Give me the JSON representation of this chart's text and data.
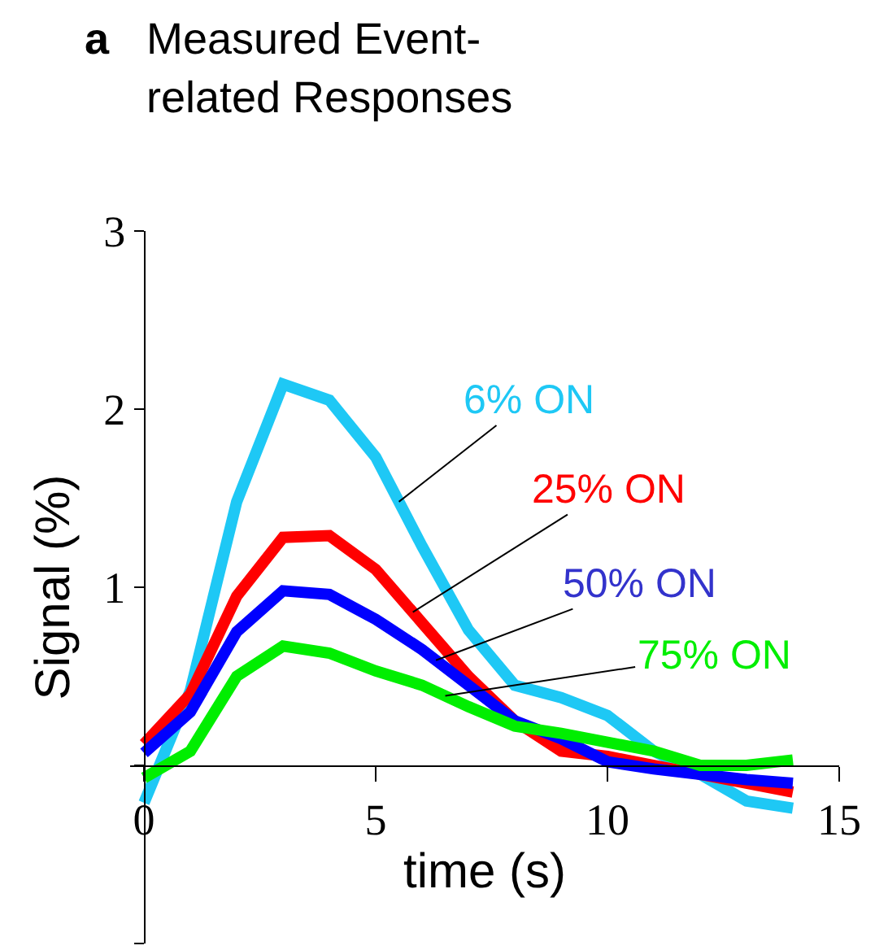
{
  "chart_data": {
    "type": "line",
    "title": "Measured Event-related Responses",
    "annotations": [
      "a"
    ],
    "xlabel": "time (s)",
    "ylabel": "Signal (%)",
    "x": [
      0,
      1,
      2,
      3,
      4,
      5,
      6,
      7,
      8,
      9,
      10,
      11,
      12,
      13,
      14
    ],
    "series": [
      {
        "name": "6% ON",
        "color": "#1ec8f5",
        "values": [
          -0.21,
          0.42,
          1.48,
          2.14,
          2.05,
          1.73,
          1.23,
          0.76,
          0.45,
          0.38,
          0.28,
          0.08,
          -0.05,
          -0.2,
          -0.24
        ]
      },
      {
        "name": "25% ON",
        "color": "#ff0000",
        "values": [
          0.12,
          0.4,
          0.95,
          1.28,
          1.29,
          1.1,
          0.8,
          0.5,
          0.25,
          0.08,
          0.05,
          0.0,
          -0.05,
          -0.1,
          -0.15
        ]
      },
      {
        "name": "50% ON",
        "color": "#0000ff",
        "values": [
          0.07,
          0.3,
          0.75,
          0.98,
          0.96,
          0.82,
          0.65,
          0.45,
          0.25,
          0.15,
          0.02,
          -0.02,
          -0.05,
          -0.08,
          -0.1
        ]
      },
      {
        "name": "75% ON",
        "color": "#00ee00",
        "values": [
          -0.07,
          0.08,
          0.5,
          0.67,
          0.63,
          0.53,
          0.45,
          0.33,
          0.22,
          0.18,
          0.13,
          0.08,
          0.0,
          0.0,
          0.03
        ]
      }
    ],
    "xlim": [
      -0.3,
      15
    ],
    "xticks": [
      0,
      5,
      10,
      15
    ],
    "ylim": [
      -1,
      3
    ],
    "yticks": [
      {
        "value": -1,
        "label": null
      },
      {
        "value": 0,
        "label": null
      },
      1,
      2,
      3
    ],
    "grid": false,
    "legend": false,
    "marker": "none",
    "line_style": "solid"
  }
}
